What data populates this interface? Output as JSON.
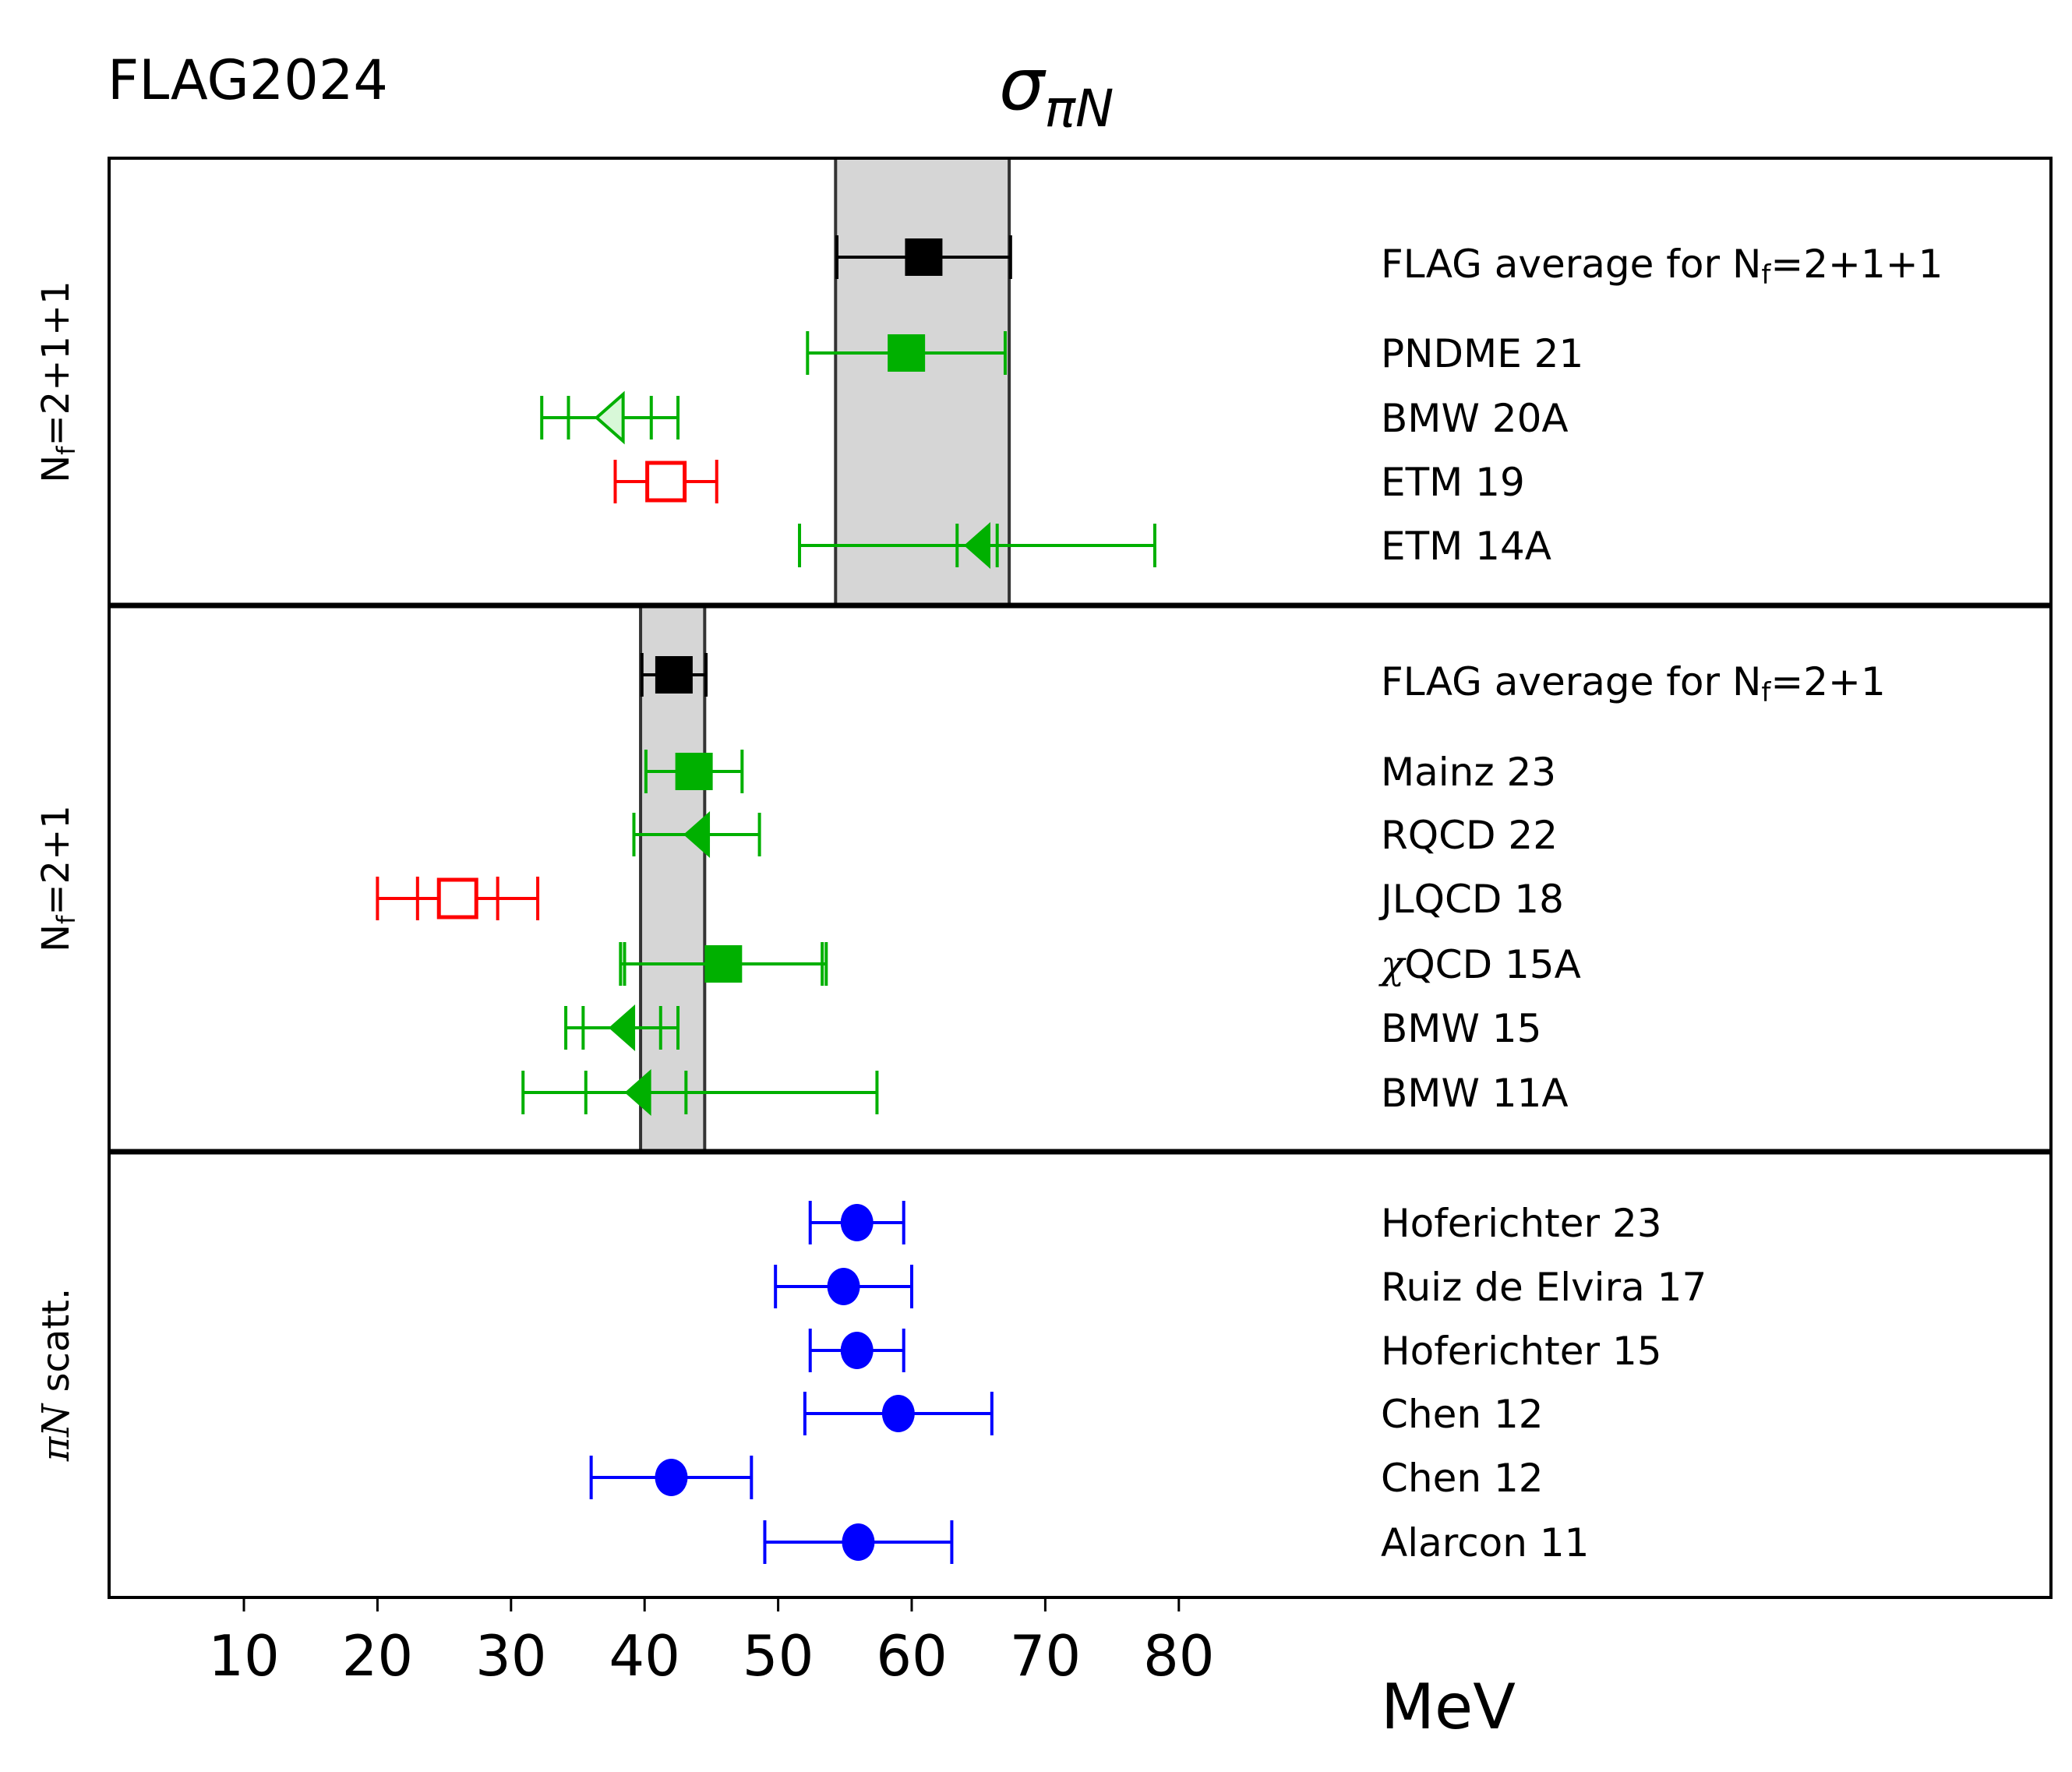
{
  "chart_data": {
    "type": "scatter",
    "title": "σ_πN",
    "title_main": "σ",
    "title_sub": "πN",
    "watermark": "FLAG2024",
    "watermark_color": "#ff0000",
    "xlabel": "MeV",
    "xlim": [
      0,
      145
    ],
    "xticks": [
      10,
      20,
      30,
      40,
      50,
      60,
      70,
      80
    ],
    "grid": false,
    "colors": {
      "average": "#000000",
      "green": "#00b000",
      "red": "#ff0000",
      "blue": "#0000ff",
      "band": "#d6d6d6",
      "band_edge": "#333333"
    },
    "panels": [
      {
        "label": "Nf=2+1+1",
        "label_main": "N",
        "label_sub": "f",
        "label_rest": "=2+1+1",
        "band": [
          54.3,
          67.3
        ],
        "entries": [
          {
            "name": "FLAG average for Nf=2+1+1",
            "name_main": "FLAG average for N",
            "name_sub": "f",
            "name_rest": "=2+1+1",
            "value": 60.9,
            "err_stat": 6.5,
            "err_tot": 6.5,
            "marker": "square",
            "fill": "filled",
            "color": "average",
            "is_average": true
          },
          {
            "name": "PNDME 21",
            "value": 59.6,
            "err_stat": 7.4,
            "err_tot": 7.4,
            "marker": "square",
            "fill": "filled",
            "color": "green"
          },
          {
            "name": "BMW 20A",
            "value": 37.4,
            "err_stat": 3.1,
            "err_tot": 5.1,
            "marker": "triangle-left",
            "fill": "open",
            "color": "green"
          },
          {
            "name": "ETM 19",
            "value": 41.6,
            "err_stat": 3.8,
            "err_tot": 3.8,
            "marker": "square",
            "fill": "open",
            "color": "red"
          },
          {
            "name": "ETM 14A",
            "value": 64.9,
            "err_stat": 1.5,
            "err_tot": 13.3,
            "marker": "triangle-left",
            "fill": "filled",
            "color": "green"
          }
        ]
      },
      {
        "label": "Nf=2+1",
        "label_main": "N",
        "label_sub": "f",
        "label_rest": "=2+1",
        "band": [
          39.7,
          44.5
        ],
        "entries": [
          {
            "name": "FLAG average for Nf=2+1",
            "name_main": "FLAG average for N",
            "name_sub": "f",
            "name_rest": "=2+1",
            "value": 42.2,
            "err_stat": 2.4,
            "err_tot": 2.4,
            "marker": "square",
            "fill": "filled",
            "color": "average",
            "is_average": true
          },
          {
            "name": "Mainz 23",
            "value": 43.7,
            "err_stat": 3.6,
            "err_tot": 3.6,
            "marker": "square",
            "fill": "filled",
            "color": "green"
          },
          {
            "name": "RQCD 22",
            "value": 43.9,
            "err_stat": 4.7,
            "err_tot": 4.7,
            "marker": "triangle-left",
            "fill": "filled",
            "color": "green"
          },
          {
            "name": "JLQCD 18",
            "value": 26.0,
            "err_stat": 3.0,
            "err_tot": 6.0,
            "marker": "square",
            "fill": "open",
            "color": "red"
          },
          {
            "name": "χQCD 15A",
            "name_chi": "χ",
            "name_rest_chi": "QCD 15A",
            "value": 45.9,
            "err_stat": 7.4,
            "err_tot": 7.7,
            "marker": "square",
            "fill": "filled",
            "color": "green"
          },
          {
            "name": "BMW 15",
            "value": 38.3,
            "err_stat": 2.9,
            "err_tot": 4.2,
            "marker": "triangle-left",
            "fill": "filled",
            "color": "green"
          },
          {
            "name": "BMW 11A",
            "value": 39.5,
            "err_stat": 3.9,
            "err_tot": 8.6,
            "err_tot_hi": 17.9,
            "err_stat_hi": 3.6,
            "marker": "triangle-left",
            "fill": "filled",
            "color": "green"
          }
        ]
      },
      {
        "label": "πN scatt.",
        "label_pi": "πN",
        "label_rest": " scatt.",
        "band": null,
        "entries": [
          {
            "name": "Hoferichter 23",
            "value": 55.9,
            "err_stat": 3.5,
            "err_tot": 3.5,
            "marker": "circle",
            "fill": "filled",
            "color": "blue"
          },
          {
            "name": "Ruiz de Elvira 17",
            "value": 54.9,
            "err_stat": 5.1,
            "err_tot": 5.1,
            "marker": "circle",
            "fill": "filled",
            "color": "blue"
          },
          {
            "name": "Hoferichter 15",
            "value": 55.9,
            "err_stat": 3.5,
            "err_tot": 3.5,
            "marker": "circle",
            "fill": "filled",
            "color": "blue"
          },
          {
            "name": "Chen 12",
            "value": 59.0,
            "err_stat": 7.0,
            "err_tot": 7.0,
            "marker": "circle",
            "fill": "filled",
            "color": "blue"
          },
          {
            "name": "Chen 12",
            "value": 42.0,
            "err_stat": 6.0,
            "err_tot": 6.0,
            "marker": "circle",
            "fill": "filled",
            "color": "blue"
          },
          {
            "name": "Alarcon 11",
            "value": 56.0,
            "err_stat": 7.0,
            "err_tot": 7.0,
            "marker": "circle",
            "fill": "filled",
            "color": "blue"
          }
        ]
      }
    ]
  }
}
